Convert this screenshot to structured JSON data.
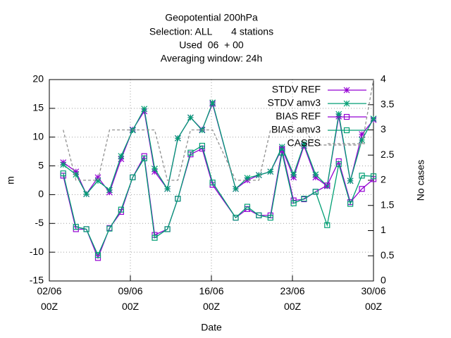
{
  "chart_data": {
    "type": "line",
    "title": [
      "Geopotential 200hPa",
      "Selection: ALL       4 stations",
      "Used  06  + 00",
      "Averaging window: 24h"
    ],
    "xlabel": "Date",
    "ylabel": "m",
    "y2label": "No cases",
    "x": [
      1.2,
      2.3,
      3.2,
      4.2,
      5.2,
      6.2,
      7.2,
      8.2,
      9.1,
      10.2,
      11.1,
      12.2,
      13.2,
      14.1,
      16.1,
      17.1,
      18.1,
      19.1,
      20.1,
      21.1,
      22,
      23,
      24,
      25,
      26,
      27,
      28
    ],
    "series": [
      {
        "name": "STDV REF",
        "color": "#9400d3",
        "marker": "star",
        "values": [
          5.6,
          4.0,
          0.1,
          3.0,
          0.4,
          6.2,
          11.3,
          14.5,
          4.0,
          1.0,
          9.8,
          13.4,
          11.3,
          15.8,
          1.0,
          2.5,
          3.4,
          4.0,
          8.0,
          3.0,
          8.5,
          3.0,
          1.5,
          13.6,
          2.4,
          10.5,
          13.0
        ]
      },
      {
        "name": "STDV amv3",
        "color": "#009e73",
        "marker": "star",
        "values": [
          5.2,
          3.5,
          0.1,
          2.4,
          0.8,
          6.7,
          11.2,
          14.9,
          4.5,
          1.0,
          9.8,
          13.4,
          11.2,
          16.0,
          1.0,
          2.9,
          3.4,
          4.0,
          8.3,
          3.5,
          8.8,
          3.5,
          1.5,
          14.0,
          2.4,
          9.5,
          13.2
        ]
      },
      {
        "name": "BIAS REF",
        "color": "#9400d3",
        "marker": "square",
        "values": [
          3.3,
          -6.0,
          -6.0,
          -11.0,
          -5.8,
          -3.0,
          3.0,
          6.7,
          -7.0,
          -6.0,
          -0.7,
          7.0,
          8.0,
          1.7,
          -4.0,
          -2.5,
          -3.6,
          -3.6,
          7.8,
          -1.0,
          -0.8,
          0.5,
          1.6,
          5.8,
          -1.3,
          1.0,
          2.7
        ]
      },
      {
        "name": "BIAS amv3",
        "color": "#009e73",
        "marker": "square",
        "values": [
          3.7,
          -5.6,
          -6.0,
          -10.5,
          -5.9,
          -2.6,
          3.0,
          6.3,
          -7.5,
          -6.0,
          -0.7,
          7.3,
          8.5,
          2.1,
          -4.0,
          -2.1,
          -3.6,
          -4.0,
          7.3,
          -1.5,
          -0.7,
          0.5,
          -5.3,
          5.3,
          -1.6,
          3.3,
          3.2
        ]
      },
      {
        "name": "CASES",
        "color": "#909090",
        "marker": "none",
        "dash": true,
        "axis": "y2",
        "values": [
          3,
          2,
          2,
          2,
          3,
          3,
          3,
          3,
          3,
          2,
          2,
          3,
          3,
          3,
          2,
          2,
          2,
          3,
          3,
          3,
          3,
          2.7,
          2.7,
          2.7,
          2.7,
          2.7,
          4
        ]
      }
    ],
    "xlim": [
      0,
      28
    ],
    "xticks": [
      {
        "value": 0,
        "label": "02/06\n00Z"
      },
      {
        "value": 7,
        "label": "09/06\n00Z"
      },
      {
        "value": 14,
        "label": "16/06\n00Z"
      },
      {
        "value": 21,
        "label": "23/06\n00Z"
      },
      {
        "value": 28,
        "label": "30/06\n00Z"
      }
    ],
    "ylim": [
      -15,
      20
    ],
    "yticks": [
      -15,
      -10,
      -5,
      0,
      5,
      10,
      15,
      20
    ],
    "y2lim": [
      0,
      4
    ],
    "y2ticks": [
      0,
      0.5,
      1,
      1.5,
      2,
      2.5,
      3,
      3.5,
      4
    ],
    "grid": true,
    "legend": "top-right"
  }
}
